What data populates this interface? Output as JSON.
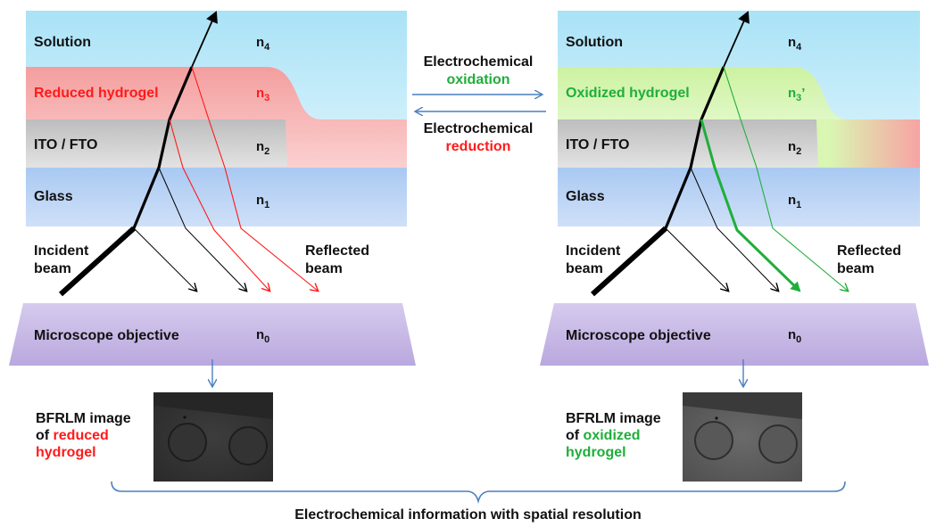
{
  "colors": {
    "solution": "#b9e8f8",
    "reduced_hydrogel": "#f7b3b3",
    "oxidized_hydrogel": "#d6f5b0",
    "ito": "#cfcfcf",
    "glass": "#b5d1f5",
    "objective": "#cdbfe8",
    "red": "#ff1a1a",
    "green": "#1fae3a",
    "arrow_blue": "#4a7fc1"
  },
  "left": {
    "solution": "Solution",
    "hydrogel": "Reduced hydrogel",
    "ito": "ITO / FTO",
    "glass": "Glass",
    "incident_1": "Incident",
    "incident_2": "beam",
    "reflected_1": "Reflected",
    "reflected_2": "beam",
    "objective": "Microscope objective",
    "n4": "n",
    "n4_sub": "4",
    "n3": "n",
    "n3_sub": "3",
    "n2": "n",
    "n2_sub": "2",
    "n1": "n",
    "n1_sub": "1",
    "n0": "n",
    "n0_sub": "0",
    "caption_1": "BFRLM image",
    "caption_2": "of ",
    "caption_colored_1": "reduced",
    "caption_colored_2": "hydrogel"
  },
  "right": {
    "solution": "Solution",
    "hydrogel": "Oxidized hydrogel",
    "ito": "ITO / FTO",
    "glass": "Glass",
    "incident_1": "Incident",
    "incident_2": "beam",
    "reflected_1": "Reflected",
    "reflected_2": "beam",
    "objective": "Microscope objective",
    "n4": "n",
    "n4_sub": "4",
    "n3": "n",
    "n3_sub": "3",
    "n3_prime": "’",
    "n2": "n",
    "n2_sub": "2",
    "n1": "n",
    "n1_sub": "1",
    "n0": "n",
    "n0_sub": "0",
    "caption_1": "BFRLM image",
    "caption_2": "of ",
    "caption_colored_1": "oxidized",
    "caption_colored_2": "hydrogel"
  },
  "middle": {
    "oxidation_1": "Electrochemical",
    "oxidation_2": "oxidation",
    "reduction_1": "Electrochemical",
    "reduction_2": "reduction"
  },
  "footer": "Electrochemical information with spatial resolution"
}
